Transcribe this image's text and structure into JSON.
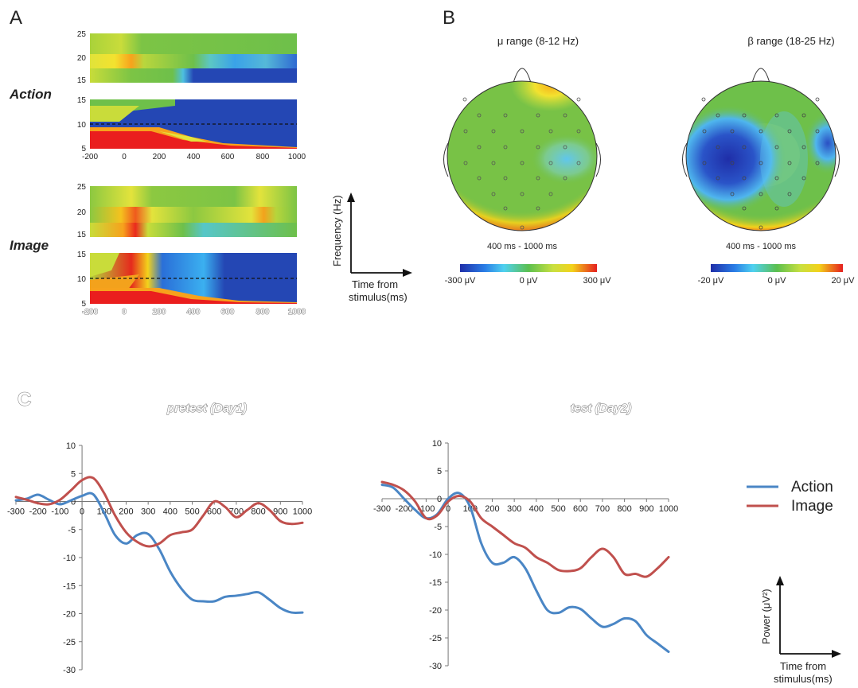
{
  "panels": {
    "a": "A",
    "b": "B",
    "c": "C"
  },
  "panel_a": {
    "rows": [
      {
        "label": "Action",
        "beta_ticks": [
          "25",
          "20",
          "15"
        ],
        "mu_ticks": [
          "15",
          "10",
          "5"
        ]
      },
      {
        "label": "Image",
        "beta_ticks": [
          "25",
          "20",
          "15"
        ],
        "mu_ticks": [
          "15",
          "10",
          "5"
        ]
      }
    ],
    "x_ticks": [
      "-200",
      "0",
      "200",
      "400",
      "600",
      "800",
      "1000"
    ],
    "axis_key": {
      "ylabel": "Frequency (Hz)",
      "xlabel_line1": "Time from",
      "xlabel_line2": "stimulus(ms)"
    }
  },
  "panel_b": {
    "maps": [
      {
        "title": "μ range (8-12 Hz)",
        "window": "400 ms - 1000 ms",
        "scale": [
          "-300 μV",
          "0 μV",
          "300 μV"
        ]
      },
      {
        "title": "β range (18-25 Hz)",
        "window": "400 ms - 1000 ms",
        "scale": [
          "-20 μV",
          "0 μV",
          "20 μV"
        ]
      }
    ]
  },
  "colors": {
    "action": "#4a86c5",
    "image": "#c0504d"
  },
  "chart_data": [
    {
      "type": "line",
      "title": "pretest (Day1)",
      "xlabel": "",
      "ylabel": "",
      "xlim": [
        -300,
        1000
      ],
      "ylim": [
        -30,
        10
      ],
      "x_ticks": [
        -300,
        -200,
        -100,
        0,
        100,
        200,
        300,
        400,
        500,
        600,
        700,
        800,
        900,
        1000
      ],
      "y_ticks": [
        10,
        5,
        0,
        -5,
        -10,
        -15,
        -20,
        -25,
        -30
      ],
      "series": [
        {
          "name": "Action",
          "x": [
            -300,
            -250,
            -200,
            -150,
            -100,
            -50,
            0,
            50,
            100,
            150,
            200,
            250,
            300,
            350,
            400,
            450,
            500,
            550,
            600,
            650,
            700,
            750,
            800,
            850,
            900,
            950,
            1000
          ],
          "y": [
            0.2,
            0.5,
            1.2,
            0.3,
            -0.5,
            0.2,
            1.0,
            1.3,
            -2.0,
            -6.0,
            -7.5,
            -6.0,
            -5.8,
            -8.5,
            -12.5,
            -15.5,
            -17.5,
            -17.8,
            -17.8,
            -17.0,
            -16.8,
            -16.5,
            -16.2,
            -17.5,
            -19.0,
            -19.8,
            -19.8
          ]
        },
        {
          "name": "Image",
          "x": [
            -300,
            -250,
            -200,
            -150,
            -100,
            -50,
            0,
            50,
            100,
            150,
            200,
            250,
            300,
            350,
            400,
            450,
            500,
            550,
            600,
            650,
            700,
            750,
            800,
            850,
            900,
            950,
            1000
          ],
          "y": [
            0.8,
            0.3,
            -0.3,
            -0.5,
            0.3,
            2.0,
            3.8,
            4.2,
            1.5,
            -2.5,
            -5.5,
            -7.2,
            -8.0,
            -7.5,
            -6.0,
            -5.5,
            -5.0,
            -2.5,
            0.0,
            -1.0,
            -2.8,
            -1.5,
            -0.3,
            -1.5,
            -3.5,
            -4.0,
            -3.8
          ]
        }
      ]
    },
    {
      "type": "line",
      "title": "test (Day2)",
      "xlabel": "",
      "ylabel": "",
      "xlim": [
        -300,
        1000
      ],
      "ylim": [
        -30,
        10
      ],
      "x_ticks": [
        -300,
        -200,
        -100,
        0,
        100,
        200,
        300,
        400,
        500,
        600,
        700,
        800,
        900,
        1000
      ],
      "y_ticks": [
        10,
        5,
        0,
        -5,
        -10,
        -15,
        -20,
        -25,
        -30
      ],
      "series": [
        {
          "name": "Action",
          "x": [
            -300,
            -250,
            -200,
            -150,
            -100,
            -50,
            0,
            50,
            100,
            150,
            200,
            250,
            300,
            350,
            400,
            450,
            500,
            550,
            600,
            650,
            700,
            750,
            800,
            850,
            900,
            950,
            1000
          ],
          "y": [
            2.5,
            2.0,
            0.0,
            -2.0,
            -3.5,
            -2.8,
            0.0,
            1.0,
            -1.5,
            -8.0,
            -11.5,
            -11.5,
            -10.5,
            -12.5,
            -16.5,
            -20.0,
            -20.5,
            -19.5,
            -19.8,
            -21.5,
            -23.0,
            -22.5,
            -21.5,
            -22.0,
            -24.5,
            -26.0,
            -27.5
          ]
        },
        {
          "name": "Image",
          "x": [
            -300,
            -250,
            -200,
            -150,
            -100,
            -50,
            0,
            50,
            100,
            150,
            200,
            250,
            300,
            350,
            400,
            450,
            500,
            550,
            600,
            650,
            700,
            750,
            800,
            850,
            900,
            950,
            1000
          ],
          "y": [
            3.0,
            2.5,
            1.5,
            -0.5,
            -3.5,
            -3.0,
            -0.5,
            0.5,
            -0.5,
            -3.5,
            -5.0,
            -6.5,
            -8.0,
            -8.8,
            -10.5,
            -11.5,
            -12.8,
            -13.0,
            -12.5,
            -10.5,
            -9.0,
            -10.5,
            -13.5,
            -13.5,
            -14.0,
            -12.5,
            -10.5
          ]
        }
      ]
    }
  ],
  "legend": {
    "items": [
      {
        "label": "Action"
      },
      {
        "label": "Image"
      }
    ]
  },
  "power_key": {
    "ylabel": "Power (μV²)",
    "xlabel_line1": "Time from",
    "xlabel_line2": "stimulus(ms)"
  }
}
